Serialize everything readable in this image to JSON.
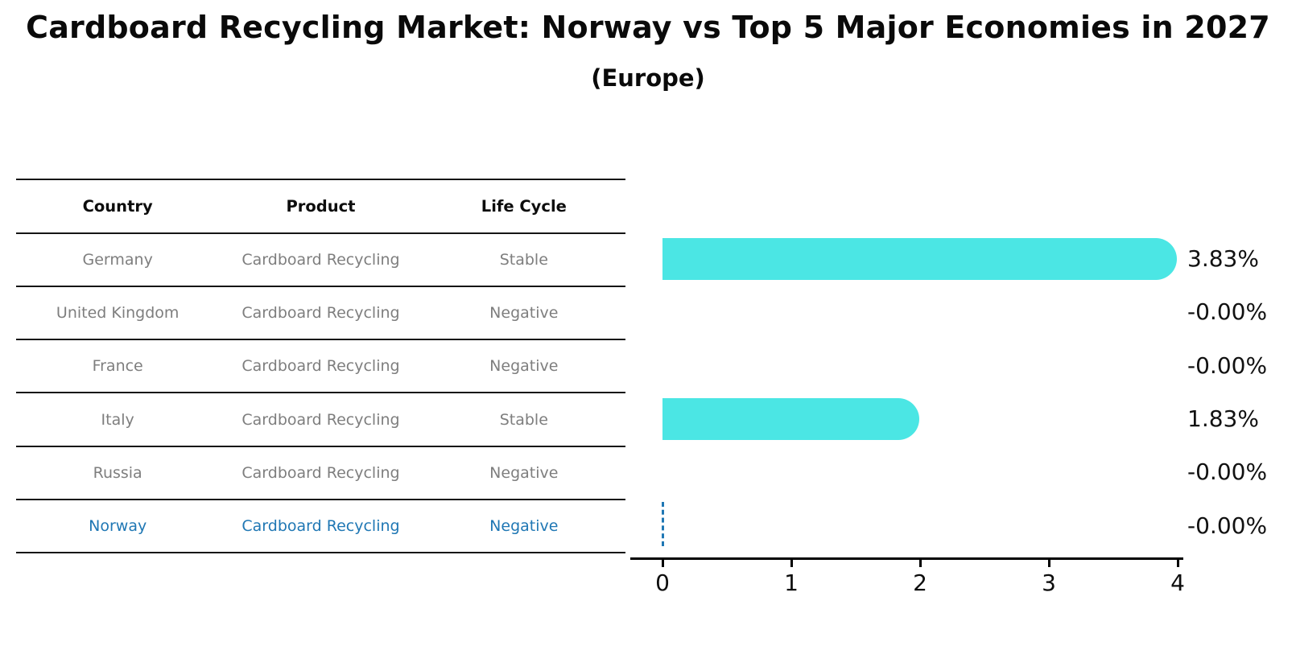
{
  "header": {
    "title": "Cardboard Recycling Market: Norway vs Top 5 Major Economies in 2027",
    "subtitle": "(Europe)"
  },
  "table": {
    "headers": [
      "Country",
      "Product",
      "Life Cycle"
    ],
    "rows": [
      {
        "country": "Germany",
        "product": "Cardboard Recycling",
        "life_cycle": "Stable",
        "highlighted": false
      },
      {
        "country": "United Kingdom",
        "product": "Cardboard Recycling",
        "life_cycle": "Negative",
        "highlighted": false
      },
      {
        "country": "France",
        "product": "Cardboard Recycling",
        "life_cycle": "Negative",
        "highlighted": false
      },
      {
        "country": "Italy",
        "product": "Cardboard Recycling",
        "life_cycle": "Stable",
        "highlighted": false
      },
      {
        "country": "Russia",
        "product": "Cardboard Recycling",
        "life_cycle": "Negative",
        "highlighted": false
      },
      {
        "country": "Norway",
        "product": "Cardboard Recycling",
        "life_cycle": "Negative",
        "highlighted": true
      }
    ]
  },
  "chart_data": {
    "type": "bar",
    "orientation": "horizontal",
    "title": "Cardboard Recycling Market: Norway vs Top 5 Major Economies in 2027",
    "subtitle": "(Europe)",
    "categories": [
      "Germany",
      "United Kingdom",
      "France",
      "Italy",
      "Russia",
      "Norway"
    ],
    "values": [
      3.83,
      -0.0,
      -0.0,
      1.83,
      -0.0,
      -0.0
    ],
    "value_labels": [
      "3.83%",
      "-0.00%",
      "-0.00%",
      "1.83%",
      "-0.00%",
      "-0.00%"
    ],
    "xlim": [
      0,
      4
    ],
    "x_ticks": [
      "0",
      "1",
      "2",
      "3",
      "4"
    ],
    "grid": false,
    "legend": "none",
    "bar_color": "#4BE6E4",
    "highlight_color": "#1F77B4",
    "highlight_index": 5,
    "muted_text_color": "#7E7E7E",
    "zero_marker_style": "dashed-vertical-line"
  }
}
